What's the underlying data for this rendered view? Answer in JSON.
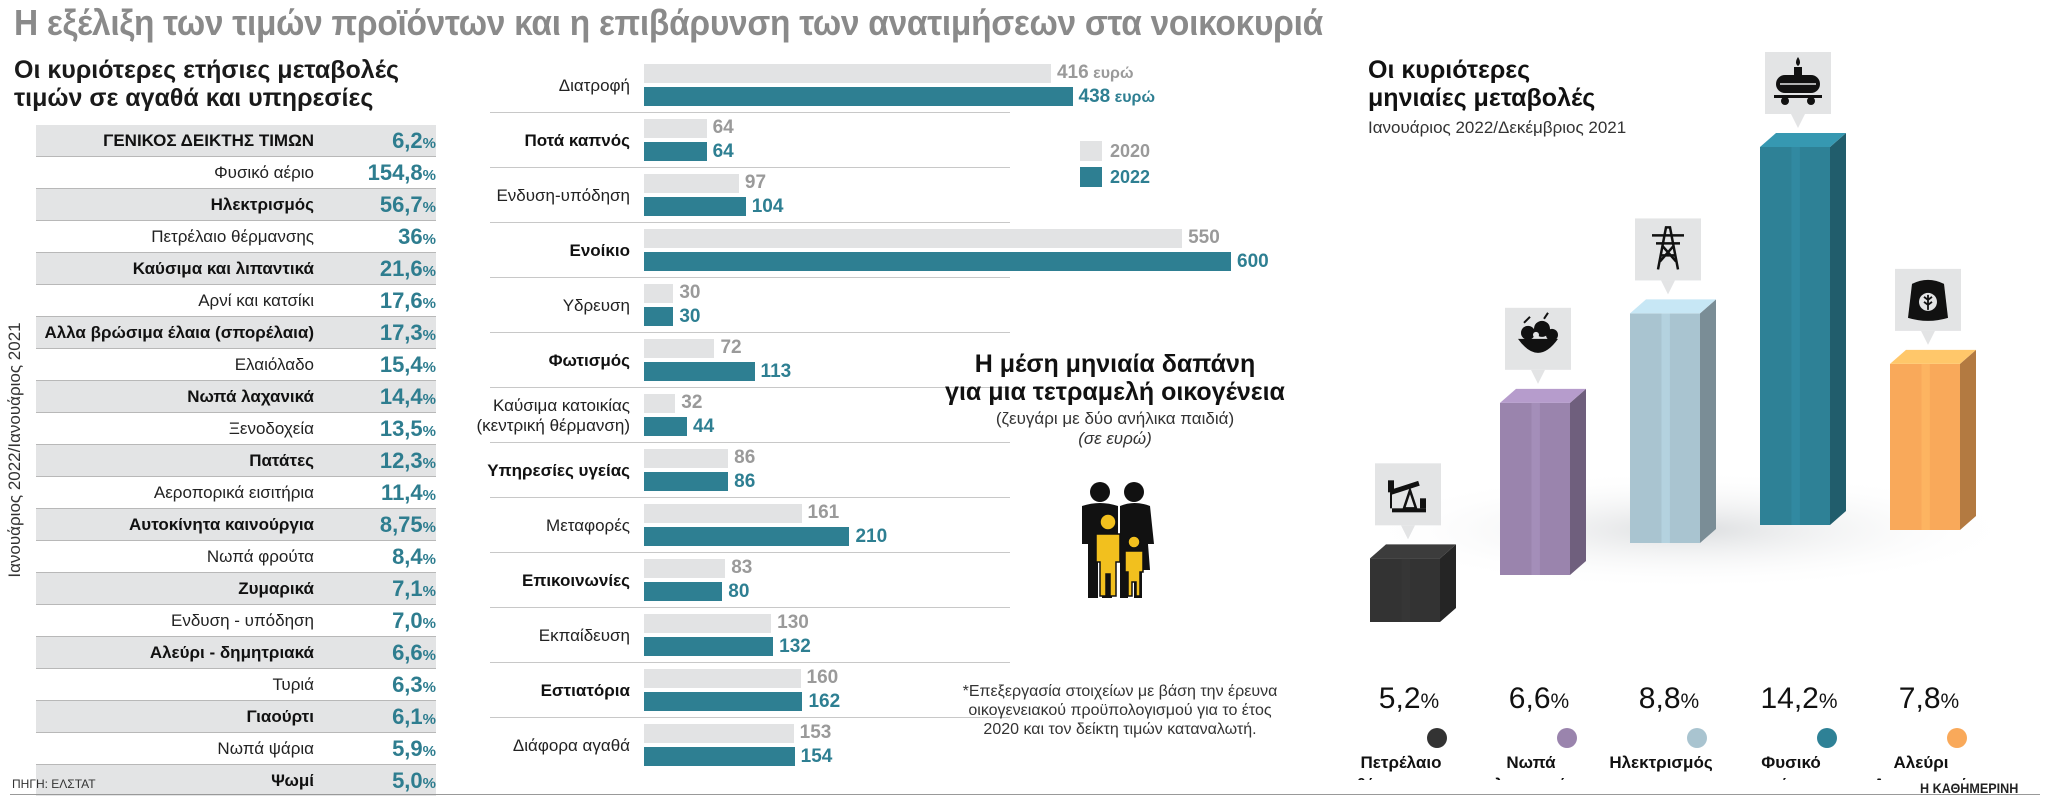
{
  "main_title": "Η εξέλιξη των τιμών προϊόντων και η επιβάρυνση των ανατιμήσεων στα νοικοκυριά",
  "annual": {
    "title_line1": "Οι κυριότερες ετήσιες μεταβολές",
    "title_line2": "τιμών σε αγαθά και υπηρεσίες",
    "side_label": "Ιανουάριος 2022/Ιανουάριος 2021",
    "unit": "%",
    "rows": [
      {
        "label": "ΓΕΝΙΚΟΣ ΔΕΙΚΤΗΣ ΤΙΜΩΝ",
        "value": "6,2",
        "bold": true
      },
      {
        "label": "Φυσικό αέριο",
        "value": "154,8",
        "bold": false
      },
      {
        "label": "Ηλεκτρισμός",
        "value": "56,7",
        "bold": true
      },
      {
        "label": "Πετρέλαιο θέρμανσης",
        "value": "36",
        "bold": false
      },
      {
        "label": "Καύσιμα και λιπαντικά",
        "value": "21,6",
        "bold": true
      },
      {
        "label": "Αρνί και κατσίκι",
        "value": "17,6",
        "bold": false
      },
      {
        "label": "Αλλα βρώσιμα έλαια (σπορέλαια)",
        "value": "17,3",
        "bold": true
      },
      {
        "label": "Ελαιόλαδο",
        "value": "15,4",
        "bold": false
      },
      {
        "label": "Νωπά λαχανικά",
        "value": "14,4",
        "bold": true
      },
      {
        "label": "Ξενοδοχεία",
        "value": "13,5",
        "bold": false
      },
      {
        "label": "Πατάτες",
        "value": "12,3",
        "bold": true
      },
      {
        "label": "Αεροπορικά εισιτήρια",
        "value": "11,4",
        "bold": false
      },
      {
        "label": "Αυτοκίνητα καινούργια",
        "value": "8,75",
        "bold": true
      },
      {
        "label": "Νωπά φρούτα",
        "value": "8,4",
        "bold": false
      },
      {
        "label": "Ζυμαρικά",
        "value": "7,1",
        "bold": true
      },
      {
        "label": "Ενδυση - υπόδηση",
        "value": "7,0",
        "bold": false
      },
      {
        "label": "Αλεύρι - δημητριακά",
        "value": "6,6",
        "bold": true
      },
      {
        "label": "Τυριά",
        "value": "6,3",
        "bold": false
      },
      {
        "label": "Γιαούρτι",
        "value": "6,1",
        "bold": true
      },
      {
        "label": "Νωπά ψάρια",
        "value": "5,9",
        "bold": false
      },
      {
        "label": "Ψωμί",
        "value": "5,0",
        "bold": true
      }
    ]
  },
  "source": "ΠΗΓΗ: ΕΛΣΤΑΤ",
  "brand": "Η ΚΑΘΗΜΕΡΙΝΗ",
  "spending": {
    "title_line1": "Η μέση μηνιαία δαπάνη",
    "title_line2": "για μια τετραμελή οικογένεια",
    "subtitle": "(ζευγάρι με δύο ανήλικα παιδιά)",
    "unit_note": "(σε ευρώ)",
    "note": "*Επεξεργασία στοιχείων με βάση την έρευνα οικογενειακού προϋπολογισμού για το έτος 2020 και τον δείκτη τιμών καταναλωτή.",
    "unit_word": "ευρώ",
    "legend": [
      {
        "label": "2020",
        "color": "#e2e3e4",
        "text_color": "#9a9a9a"
      },
      {
        "label": "2022",
        "color": "#2e7f92",
        "text_color": "#2e7f92"
      }
    ]
  },
  "chart_data": [
    {
      "type": "bar",
      "orientation": "horizontal",
      "categories": [
        "Διατροφή",
        "Ποτά καπνός",
        "Ενδυση-υπόδηση",
        "Ενοίκιο",
        "Υδρευση",
        "Φωτισμός",
        "Καύσιμα κατοικίας (κεντρική θέρμανση)",
        "Υπηρεσίες υγείας",
        "Μεταφορές",
        "Επικοινωνίες",
        "Εκπαίδευση",
        "Εστιατόρια",
        "Διάφορα αγαθά"
      ],
      "bold": [
        false,
        true,
        false,
        true,
        false,
        true,
        false,
        true,
        false,
        true,
        false,
        true,
        false
      ],
      "label_lines": [
        [
          "Διατροφή"
        ],
        [
          "Ποτά καπνός"
        ],
        [
          "Ενδυση-υπόδηση"
        ],
        [
          "Ενοίκιο"
        ],
        [
          "Υδρευση"
        ],
        [
          "Φωτισμός"
        ],
        [
          "Καύσιμα κατοικίας",
          "(κεντρική θέρμανση)"
        ],
        [
          "Υπηρεσίες υγείας"
        ],
        [
          "Μεταφορές"
        ],
        [
          "Επικοινωνίες"
        ],
        [
          "Εκπαίδευση"
        ],
        [
          "Εστιατόρια"
        ],
        [
          "Διάφορα αγαθά"
        ]
      ],
      "series": [
        {
          "name": "2020",
          "values": [
            416,
            64,
            97,
            550,
            30,
            72,
            32,
            86,
            161,
            83,
            130,
            160,
            153
          ]
        },
        {
          "name": "2022",
          "values": [
            438,
            64,
            104,
            600,
            30,
            113,
            44,
            86,
            210,
            80,
            132,
            162,
            154
          ]
        }
      ]
    },
    {
      "type": "bar",
      "title_line1": "Οι κυριότερες",
      "title_line2": "μηνιαίες μεταβολές",
      "subtitle": "Ιανουάριος 2022/Δεκέμβριος 2021",
      "categories": [
        "Πετρέλαιο θέρμανσης",
        "Νωπά λαχανικά",
        "Ηλεκτρισμός",
        "Φυσικό αέριο",
        "Αλεύρι Δημητριακά"
      ],
      "label_lines": [
        [
          "Πετρέλαιο",
          "θέρμανσης"
        ],
        [
          "Νωπά",
          "λαχανικά"
        ],
        [
          "Ηλεκτρισμός"
        ],
        [
          "Φυσικό",
          "αέριο"
        ],
        [
          "Αλεύρι",
          "Δημητριακά"
        ]
      ],
      "values": [
        5.2,
        6.6,
        8.8,
        14.2,
        7.8
      ],
      "value_labels": [
        "5,2",
        "6,6",
        "8,8",
        "14,2",
        "7,8"
      ],
      "unit": "%",
      "colors": [
        "#333333",
        "#9a84ad",
        "#a9c4d0",
        "#2e8196",
        "#f9a95a"
      ],
      "icons": [
        "oil-pump-icon",
        "vegetables-icon",
        "power-pylon-icon",
        "gas-tank-icon",
        "flour-bag-icon"
      ]
    }
  ]
}
